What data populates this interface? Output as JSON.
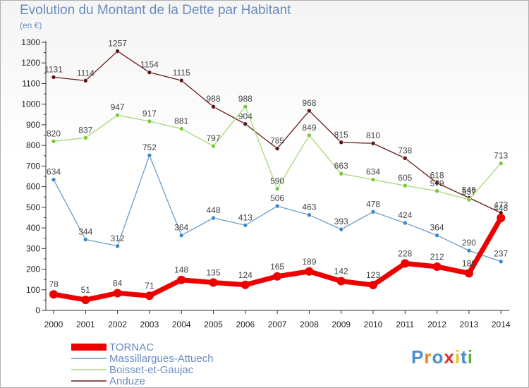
{
  "header": {
    "title": "Evolution du Montant de la Dette par Habitant",
    "unit": "(en €)"
  },
  "logo": {
    "text": "Proxiti",
    "colors": [
      "#4a90c8",
      "#f08020",
      "#4a90c8",
      "#e03030",
      "#f0c020",
      "#4a90c8",
      "#60b040"
    ]
  },
  "chart_data": {
    "type": "line",
    "ylim": [
      0,
      1300
    ],
    "yticks": [
      0,
      100,
      200,
      300,
      400,
      500,
      600,
      700,
      800,
      900,
      1000,
      1100,
      1200,
      1300
    ],
    "grid": false,
    "legend_position": "bottom-left",
    "x": [
      "2000",
      "2001",
      "2002",
      "2003",
      "2004",
      "2005",
      "2006",
      "2007",
      "2008",
      "2009",
      "2010",
      "2011",
      "2012",
      "2013",
      "2014"
    ],
    "series": [
      {
        "name": "Anduze",
        "color": "#6b1a1a",
        "marker": "#5a1414",
        "width": 1.3,
        "values": [
          1131,
          1114,
          1257,
          1154,
          1115,
          988,
          904,
          785,
          968,
          815,
          810,
          738,
          618,
          546,
          473
        ]
      },
      {
        "name": "Boisset-et-Gaujac",
        "color": "#a8d878",
        "marker": "#7cc83c",
        "width": 1.3,
        "values": [
          820,
          837,
          947,
          917,
          881,
          797,
          988,
          590,
          849,
          663,
          634,
          605,
          579,
          537,
          713
        ]
      },
      {
        "name": "Massillargues-Attuech",
        "color": "#6a9cc8",
        "marker": "#3e86c6",
        "width": 1.3,
        "values": [
          634,
          344,
          312,
          752,
          364,
          448,
          413,
          506,
          463,
          393,
          478,
          424,
          364,
          290,
          237
        ]
      },
      {
        "name": "TORNAC",
        "color": "#ee0000",
        "marker": "#ee0000",
        "width": 7,
        "values": [
          78,
          51,
          84,
          71,
          148,
          135,
          124,
          165,
          189,
          142,
          123,
          228,
          212,
          180,
          448
        ]
      }
    ],
    "legend": [
      "TORNAC",
      "Massillargues-Attuech",
      "Boisset-et-Gaujac",
      "Anduze"
    ]
  }
}
